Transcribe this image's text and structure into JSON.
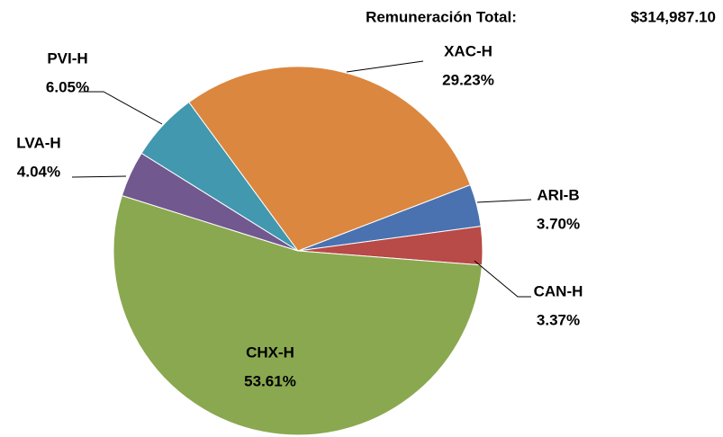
{
  "chart_data": {
    "type": "pie",
    "header_label": "Remuneración Total:",
    "header_value": "$314,987.10",
    "categories": [
      "ARI-B",
      "CAN-H",
      "CHX-H",
      "LVA-H",
      "PVI-H",
      "XAC-H"
    ],
    "values": [
      3.7,
      3.37,
      53.61,
      4.04,
      6.05,
      29.23
    ],
    "value_labels": [
      "3.70%",
      "3.37%",
      "53.61%",
      "4.04%",
      "6.05%",
      "29.23%"
    ],
    "colors": [
      "#4a72b0",
      "#b84a47",
      "#8aa84f",
      "#71588f",
      "#4198af",
      "#db8740"
    ]
  }
}
